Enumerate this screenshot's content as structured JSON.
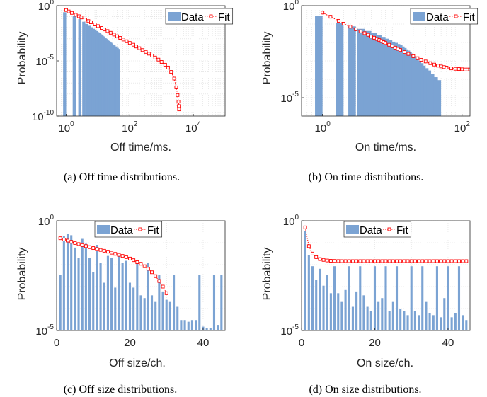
{
  "legend": {
    "data_label": "Data",
    "fit_label": "Fit"
  },
  "colors": {
    "bar": "#7ba3d3",
    "fit": "#ff0000",
    "axis": "#262626",
    "grid": "#dcdcdc"
  },
  "chart_data": [
    {
      "id": "a",
      "type": "bar",
      "xscale": "log",
      "yscale": "log",
      "xlim": [
        0.5,
        100000
      ],
      "ylim": [
        1e-10,
        1
      ],
      "xticks": [
        {
          "b": "10",
          "e": "0",
          "v": 1
        },
        {
          "b": "10",
          "e": "2",
          "v": 100
        },
        {
          "b": "10",
          "e": "4",
          "v": 10000
        }
      ],
      "yticks": [
        {
          "b": "10",
          "e": "-10",
          "v": 1e-10
        },
        {
          "b": "10",
          "e": "-5",
          "v": 1e-05
        },
        {
          "b": "10",
          "e": "0",
          "v": 1
        }
      ],
      "xlabel": "Off time/ms.",
      "ylabel": "Probability",
      "caption": "(a) Off time distributions.",
      "bars": {
        "x": [
          1,
          2,
          3,
          4,
          5,
          6,
          7,
          8,
          9,
          10,
          11,
          12,
          13,
          14,
          15,
          16,
          17,
          18,
          19,
          20,
          22,
          24,
          26,
          28,
          30,
          33,
          36,
          40,
          45,
          50
        ],
        "values": [
          0.25,
          0.12,
          0.06,
          0.035,
          0.022,
          0.015,
          0.011,
          0.008,
          0.006,
          0.005,
          0.004,
          0.0033,
          0.0028,
          0.0024,
          0.002,
          0.0017,
          0.0015,
          0.0013,
          0.0011,
          0.001,
          0.0008,
          0.00065,
          0.00055,
          0.00045,
          0.00038,
          0.0003,
          0.00025,
          0.0002,
          0.00015,
          0.00012
        ]
      },
      "fit": {
        "x": [
          1,
          1.2,
          1.5,
          2,
          2.5,
          3,
          4,
          5,
          6,
          8,
          10,
          13,
          16,
          20,
          25,
          32,
          40,
          50,
          63,
          80,
          100,
          130,
          160,
          200,
          250,
          320,
          400,
          500,
          630,
          800,
          1000,
          1300,
          1600,
          2000,
          2500,
          2900,
          3200,
          3400,
          3500,
          3550
        ],
        "y": [
          0.4,
          0.3,
          0.22,
          0.15,
          0.11,
          0.085,
          0.055,
          0.04,
          0.031,
          0.02,
          0.014,
          0.0095,
          0.007,
          0.005,
          0.0035,
          0.0024,
          0.0017,
          0.0012,
          0.00085,
          0.0006,
          0.00042,
          0.00029,
          0.0002,
          0.00014,
          9.5e-05,
          6.5e-05,
          4.5e-05,
          3e-05,
          2e-05,
          1.3e-05,
          8e-06,
          4.5e-06,
          2.5e-06,
          1e-06,
          2.5e-07,
          4e-08,
          8e-09,
          2e-09,
          8e-10,
          4e-10
        ]
      }
    },
    {
      "id": "b",
      "type": "bar",
      "xscale": "log",
      "yscale": "log",
      "xlim": [
        0.5,
        130
      ],
      "ylim": [
        1e-06,
        1
      ],
      "xticks": [
        {
          "b": "10",
          "e": "0",
          "v": 1
        },
        {
          "b": "10",
          "e": "2",
          "v": 100
        }
      ],
      "yticks": [
        {
          "b": "10",
          "e": "-5",
          "v": 1e-05
        },
        {
          "b": "10",
          "e": "0",
          "v": 1
        }
      ],
      "xlabel": "On time/ms.",
      "ylabel": "Probability",
      "caption": "(b) On time distributions.",
      "bars": {
        "x": [
          1,
          2,
          3,
          4,
          5,
          6,
          7,
          8,
          9,
          10,
          11,
          12,
          13,
          14,
          15,
          16,
          17,
          18,
          19,
          20,
          22,
          24,
          26,
          28,
          30,
          33,
          36,
          40,
          45,
          50
        ],
        "values": [
          0.28,
          0.11,
          0.075,
          0.055,
          0.042,
          0.032,
          0.025,
          0.02,
          0.016,
          0.013,
          0.011,
          0.0095,
          0.0082,
          0.007,
          0.006,
          0.005,
          0.0042,
          0.0036,
          0.003,
          0.0025,
          0.0018,
          0.0013,
          0.001,
          0.00075,
          0.00055,
          0.0004,
          0.0003,
          0.0002,
          0.00013,
          9e-05
        ]
      },
      "fit": {
        "x": [
          1,
          1.3,
          1.7,
          2,
          2.5,
          3,
          3.5,
          4,
          4.5,
          5,
          5.5,
          6,
          6.5,
          7,
          7.5,
          8,
          9,
          10,
          11,
          12,
          13,
          15,
          17,
          20,
          23,
          26,
          30,
          35,
          40,
          45,
          50,
          55,
          60,
          70,
          80,
          90,
          100,
          110,
          120,
          130
        ],
        "y": [
          0.42,
          0.25,
          0.15,
          0.105,
          0.072,
          0.052,
          0.04,
          0.032,
          0.026,
          0.021,
          0.018,
          0.0155,
          0.0135,
          0.0118,
          0.0104,
          0.0093,
          0.0075,
          0.0062,
          0.0052,
          0.0045,
          0.0039,
          0.003,
          0.0024,
          0.0018,
          0.0014,
          0.00115,
          0.00093,
          0.00075,
          0.00063,
          0.00055,
          0.0005,
          0.00046,
          0.00043,
          0.00039,
          0.00037,
          0.00036,
          0.00035,
          0.00034,
          0.00034,
          0.00034
        ]
      }
    },
    {
      "id": "c",
      "type": "bar",
      "xscale": "linear",
      "yscale": "log",
      "xlim": [
        0,
        46
      ],
      "ylim": [
        1e-05,
        1
      ],
      "xticks": [
        {
          "t": "0",
          "v": 0
        },
        {
          "t": "20",
          "v": 20
        },
        {
          "t": "40",
          "v": 40
        }
      ],
      "yticks": [
        {
          "b": "10",
          "e": "-5",
          "v": 1e-05
        },
        {
          "b": "10",
          "e": "0",
          "v": 1
        }
      ],
      "xlabel": "Off size/ch.",
      "ylabel": "Probability",
      "caption": "(c) Off size distributions.",
      "bars": {
        "x": [
          1,
          2,
          3,
          4,
          5,
          6,
          7,
          8,
          9,
          10,
          11,
          12,
          13,
          14,
          15,
          16,
          17,
          18,
          19,
          20,
          21,
          22,
          23,
          24,
          25,
          26,
          27,
          28,
          29,
          30,
          31,
          32,
          33,
          34,
          35,
          36,
          37,
          38,
          39,
          40,
          41,
          42,
          43,
          44,
          45
        ],
        "values": [
          0.0035,
          0.2,
          0.25,
          0.22,
          0.06,
          0.02,
          0.15,
          0.09,
          0.02,
          0.0045,
          0.08,
          0.012,
          0.0015,
          0.025,
          0.02,
          0.0009,
          0.035,
          0.012,
          0.015,
          0.0015,
          0.0009,
          0.014,
          0.0004,
          0.0003,
          0.012,
          0.0004,
          0.0002,
          0.0035,
          0.0006,
          0.00025,
          0.0002,
          0.0035,
          0.00012,
          3e-05,
          3e-05,
          2.5e-05,
          3e-05,
          3e-05,
          0.0035,
          1.5e-05,
          1.3e-05,
          1.3e-05,
          0.0035,
          1.8e-05,
          0.0035
        ]
      },
      "fit": {
        "x": [
          1,
          2,
          3,
          4,
          5,
          6,
          7,
          8,
          9,
          10,
          11,
          12,
          13,
          14,
          15,
          16,
          17,
          18,
          19,
          20,
          21,
          22,
          23,
          24,
          25,
          26,
          27,
          28,
          29,
          30
        ],
        "y": [
          0.16,
          0.14,
          0.125,
          0.11,
          0.097,
          0.087,
          0.078,
          0.07,
          0.063,
          0.057,
          0.052,
          0.047,
          0.043,
          0.039,
          0.035,
          0.031,
          0.028,
          0.025,
          0.022,
          0.019,
          0.016,
          0.013,
          0.011,
          0.0085,
          0.0065,
          0.0045,
          0.003,
          0.0018,
          0.001,
          0.0005
        ]
      }
    },
    {
      "id": "d",
      "type": "bar",
      "xscale": "linear",
      "yscale": "log",
      "xlim": [
        0,
        46
      ],
      "ylim": [
        1e-05,
        1
      ],
      "xticks": [
        {
          "t": "0",
          "v": 0
        },
        {
          "t": "20",
          "v": 20
        },
        {
          "t": "40",
          "v": 40
        }
      ],
      "yticks": [
        {
          "b": "10",
          "e": "-5",
          "v": 1e-05
        },
        {
          "b": "10",
          "e": "0",
          "v": 1
        }
      ],
      "xlabel": "On size/ch.",
      "ylabel": "Probability",
      "caption": "(d) On size distributions.",
      "bars": {
        "x": [
          1,
          2,
          3,
          4,
          5,
          6,
          7,
          8,
          9,
          10,
          11,
          12,
          13,
          14,
          15,
          16,
          17,
          18,
          19,
          20,
          21,
          22,
          23,
          24,
          25,
          26,
          27,
          28,
          29,
          30,
          31,
          32,
          33,
          34,
          35,
          36,
          37,
          38,
          39,
          40,
          41,
          42,
          43,
          44,
          45
        ],
        "values": [
          0.35,
          0.028,
          0.0085,
          0.002,
          0.0065,
          0.0011,
          0.0035,
          0.0005,
          0.0085,
          0.0005,
          0.0002,
          0.0007,
          0.0085,
          0.00012,
          0.0006,
          0.0085,
          0.0004,
          0.00012,
          8e-05,
          0.0085,
          0.0002,
          0.0003,
          0.0085,
          8e-05,
          0.0002,
          0.0085,
          0.0001,
          8e-05,
          5e-05,
          0.0085,
          8e-05,
          5e-05,
          0.0085,
          0.0002,
          6e-05,
          5e-05,
          0.0085,
          4e-05,
          0.0003,
          0.0085,
          4e-05,
          6e-05,
          0.0085,
          5e-05,
          3e-05
        ]
      },
      "fit": {
        "x": [
          1,
          2,
          3,
          4,
          5,
          6,
          7,
          8,
          9,
          10,
          11,
          12,
          13,
          14,
          15,
          16,
          17,
          18,
          19,
          20,
          21,
          22,
          23,
          24,
          25,
          26,
          27,
          28,
          29,
          30,
          31,
          32,
          33,
          34,
          35,
          36,
          37,
          38,
          39,
          40,
          41,
          42,
          43,
          44,
          45
        ],
        "y": [
          0.5,
          0.07,
          0.032,
          0.022,
          0.018,
          0.0165,
          0.0155,
          0.015,
          0.0148,
          0.0146,
          0.0145,
          0.0145,
          0.0145,
          0.0145,
          0.0145,
          0.0145,
          0.0145,
          0.0145,
          0.0145,
          0.0145,
          0.0145,
          0.0145,
          0.0145,
          0.0145,
          0.0145,
          0.0145,
          0.0145,
          0.0145,
          0.0145,
          0.0145,
          0.0145,
          0.0145,
          0.0145,
          0.0145,
          0.0145,
          0.0145,
          0.0145,
          0.0145,
          0.0145,
          0.0145,
          0.0145,
          0.0145,
          0.0145,
          0.0145,
          0.0145
        ]
      }
    }
  ]
}
